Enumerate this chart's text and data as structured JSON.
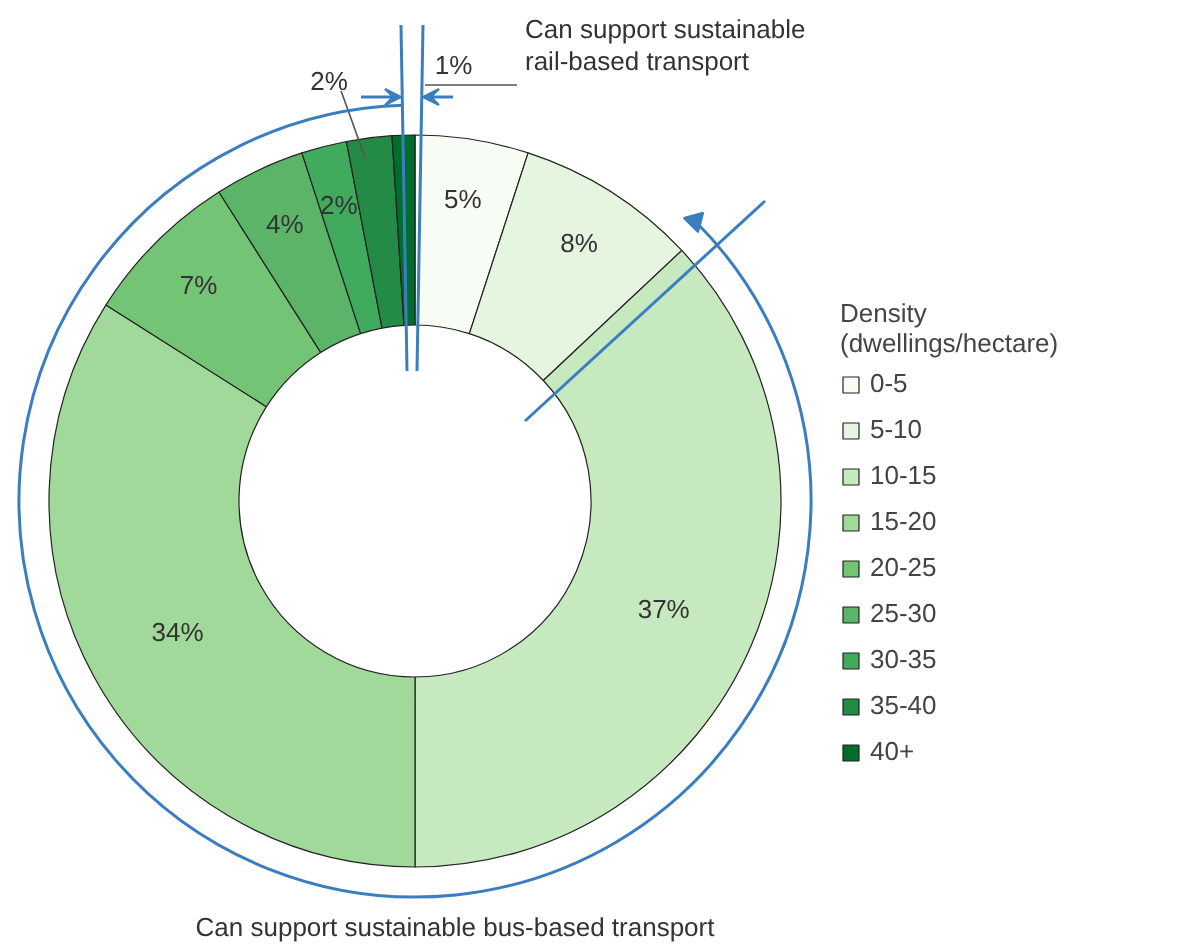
{
  "chart_data": {
    "type": "donut",
    "legend_title": "Density (dwellings/hectare)",
    "categories": [
      "0-5",
      "5-10",
      "10-15",
      "15-20",
      "20-25",
      "25-30",
      "30-35",
      "35-40",
      "40+"
    ],
    "values": [
      5,
      8,
      37,
      34,
      7,
      4,
      2,
      2,
      1
    ],
    "colors": [
      "#f7fcf5",
      "#e5f5e0",
      "#c7e9c0",
      "#a1d99b",
      "#74c476",
      "#5bb467",
      "#41ab5d",
      "#238b45",
      "#006d2c"
    ],
    "value_labels": [
      "5%",
      "8%",
      "37%",
      "34%",
      "7%",
      "4%",
      "2%",
      "2%",
      "1%"
    ],
    "legend": "right",
    "annotations": [
      "Can support sustainable rail-based transport",
      "Can support sustainable bus-based transport"
    ]
  }
}
